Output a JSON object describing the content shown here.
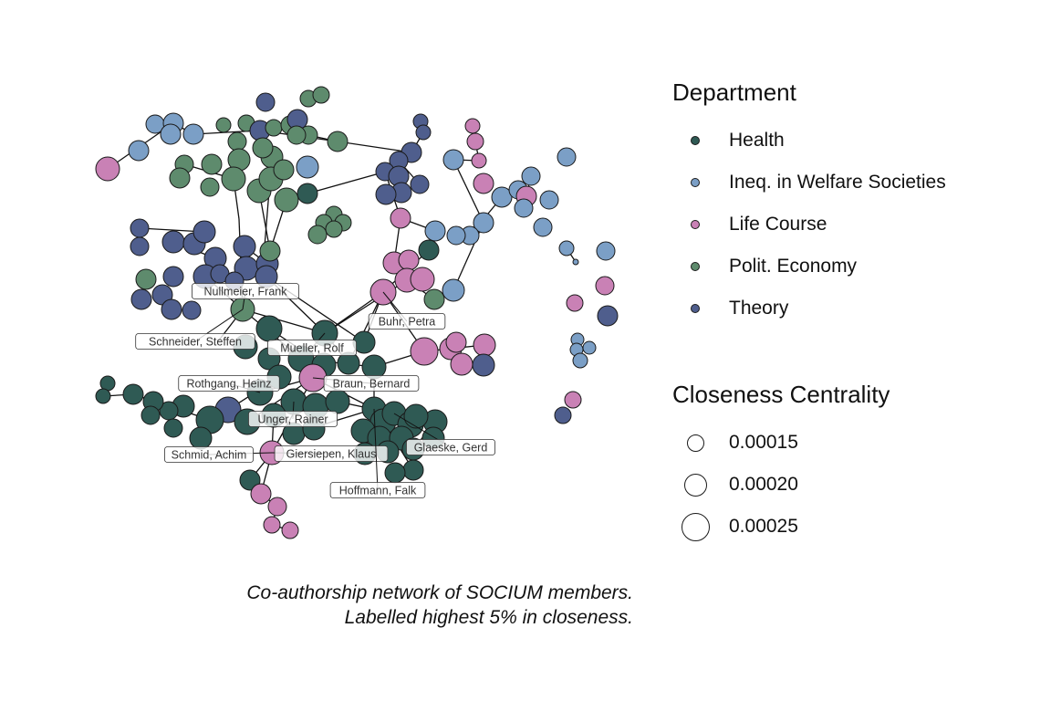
{
  "caption": {
    "line1": "Co-authorship network of SOCIUM members.",
    "line2": "Labelled highest 5% in closeness."
  },
  "legend_department": {
    "title": "Department",
    "items": [
      {
        "label": "Health",
        "color": "#2f5a54"
      },
      {
        "label": "Ineq. in Welfare Societies",
        "color": "#7b9fc6"
      },
      {
        "label": "Life Course",
        "color": "#c981b5"
      },
      {
        "label": "Polit. Economy",
        "color": "#5e8b6d"
      },
      {
        "label": "Theory",
        "color": "#4f5e8d"
      }
    ]
  },
  "legend_closeness": {
    "title": "Closeness Centrality",
    "items": [
      {
        "label": "0.00015",
        "value": 0.00015
      },
      {
        "label": "0.00020",
        "value": 0.0002
      },
      {
        "label": "0.00025",
        "value": 0.00025
      }
    ]
  },
  "labelled_nodes": [
    "Nullmeier, Frank",
    "Buhr, Petra",
    "Schneider, Steffen",
    "Mueller, Rolf",
    "Rothgang, Heinz",
    "Braun, Bernard",
    "Unger, Rainer",
    "Glaeske, Gerd",
    "Schmid, Achim",
    "Giersiepen, Klaus",
    "Hoffmann, Falk"
  ]
}
